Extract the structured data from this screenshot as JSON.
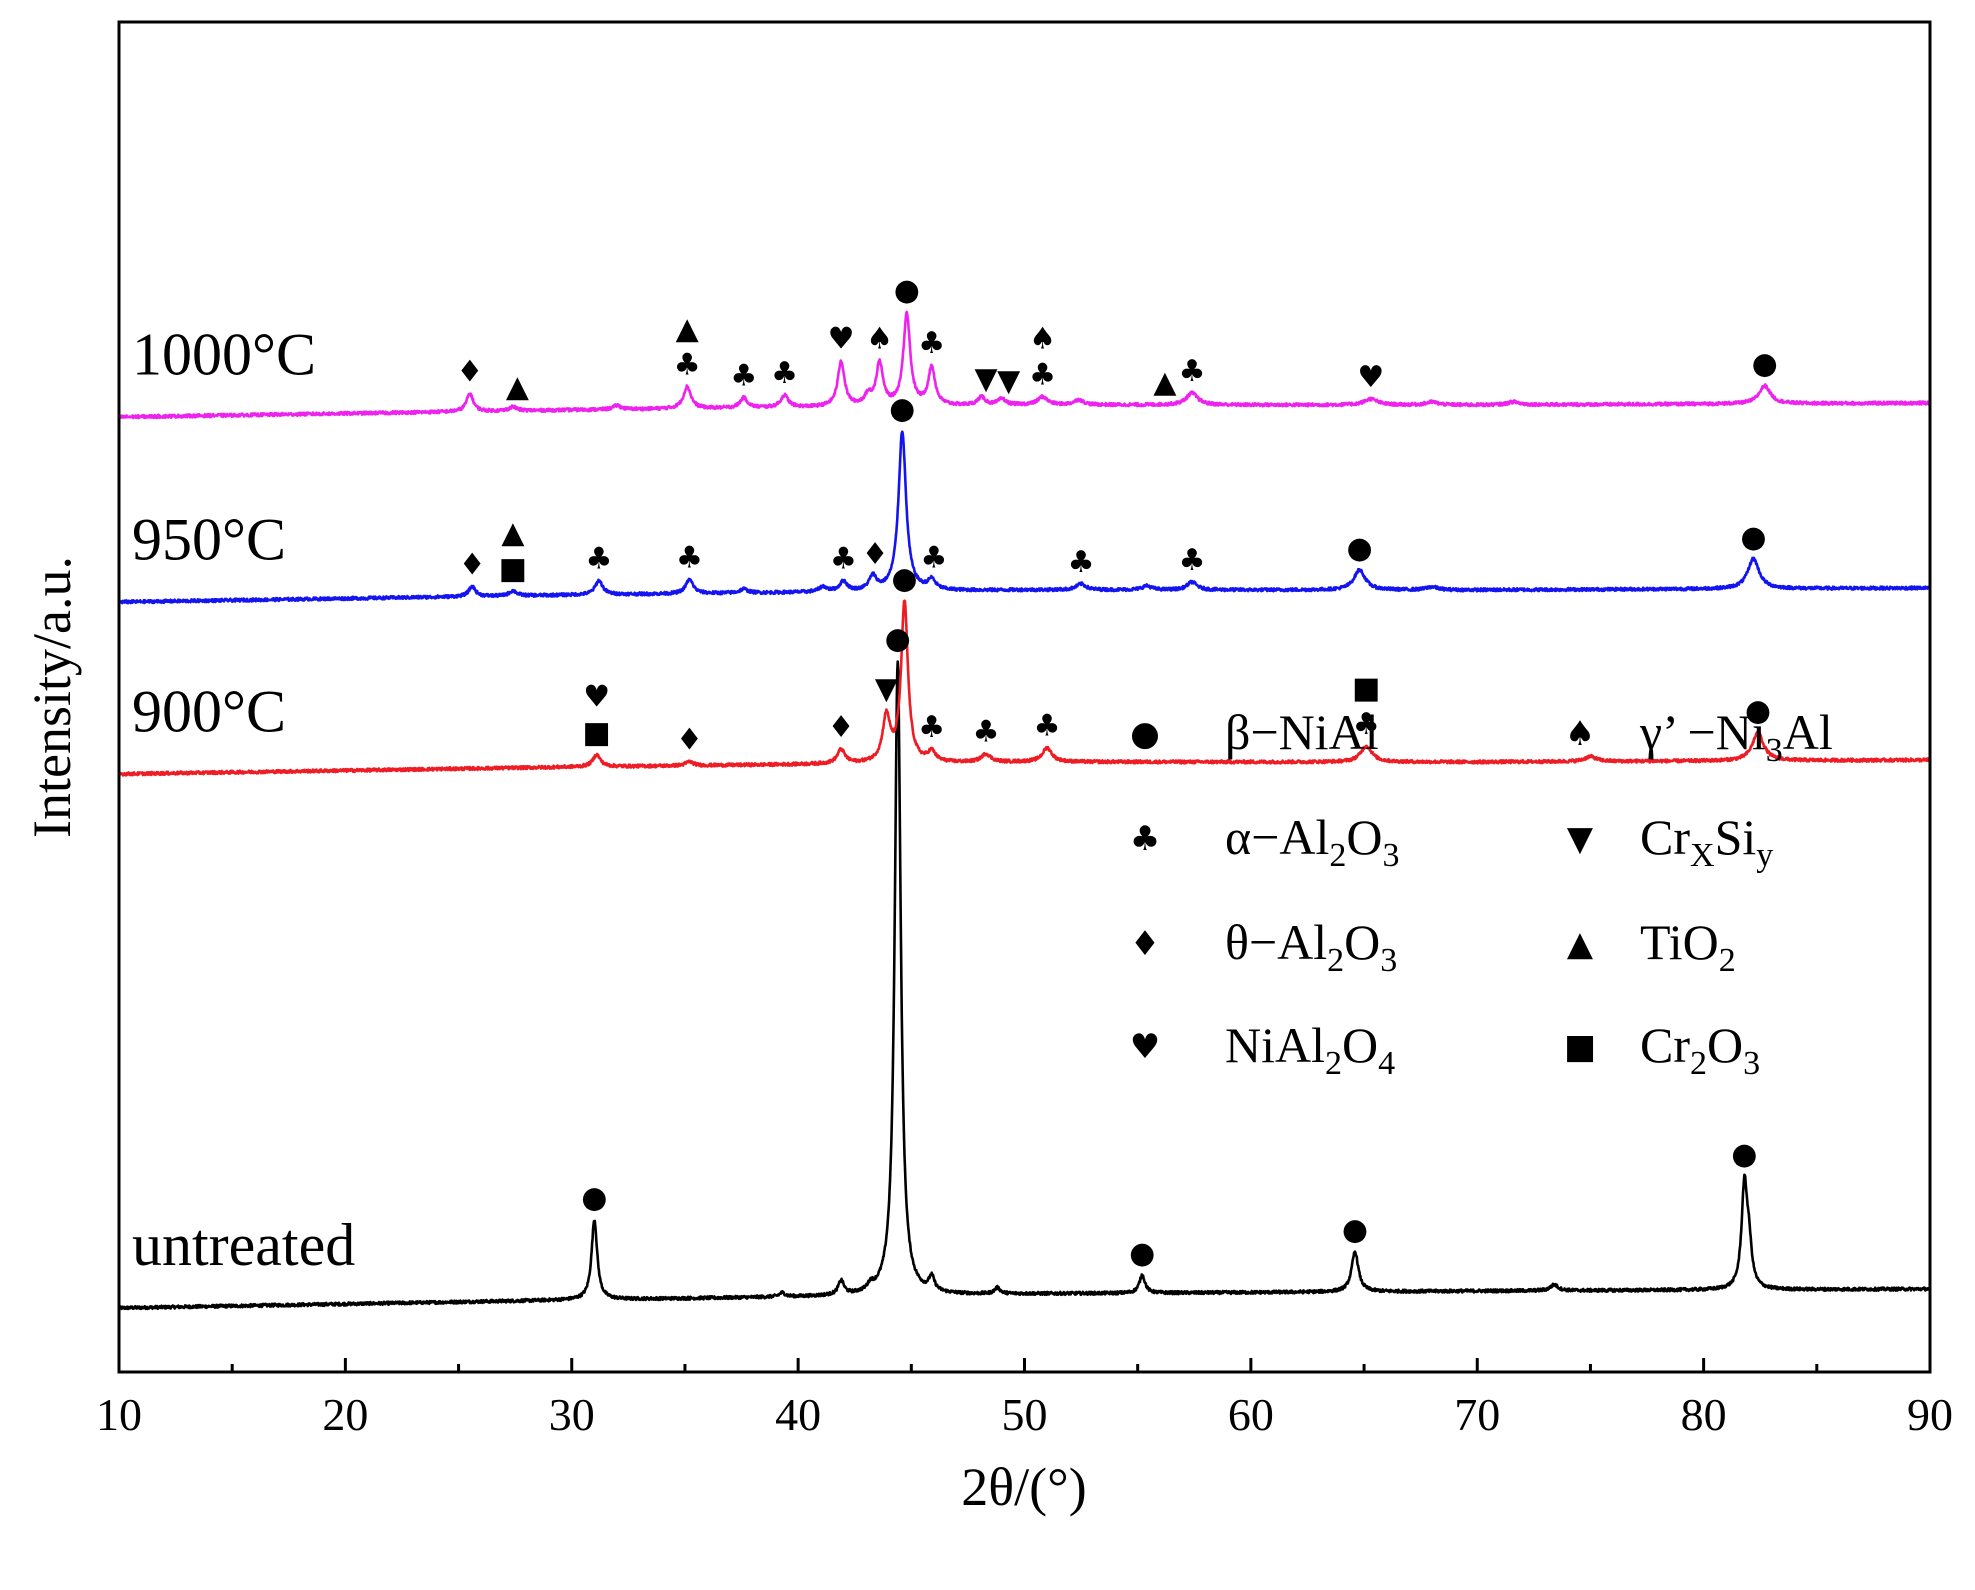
{
  "chart_data": {
    "type": "line",
    "title": "",
    "xlabel": "2θ/(°)",
    "ylabel": "Intensity/a.u.",
    "xlim": [
      10,
      90
    ],
    "x_ticks": [
      10,
      20,
      30,
      40,
      50,
      60,
      70,
      80,
      90
    ],
    "minor_tick_step": 5,
    "y_ticks": [],
    "grid": false,
    "legend_position": "center-right",
    "series": [
      {
        "name": "untreated",
        "color": "#000000",
        "offset": 0,
        "baseline": [
          [
            10,
            14
          ],
          [
            30,
            22
          ],
          [
            50,
            28
          ],
          [
            70,
            31
          ],
          [
            90,
            33
          ]
        ],
        "peaks": [
          {
            "x": 31.0,
            "h": 80,
            "w": 0.15
          },
          {
            "x": 39.3,
            "h": 4,
            "w": 0.15
          },
          {
            "x": 41.9,
            "h": 14,
            "w": 0.15
          },
          {
            "x": 43.2,
            "h": 6,
            "w": 0.15
          },
          {
            "x": 44.4,
            "h": 635,
            "w": 0.16
          },
          {
            "x": 45.9,
            "h": 14,
            "w": 0.15
          },
          {
            "x": 48.8,
            "h": 6,
            "w": 0.15
          },
          {
            "x": 55.2,
            "h": 18,
            "w": 0.15
          },
          {
            "x": 64.6,
            "h": 40,
            "w": 0.18
          },
          {
            "x": 73.4,
            "h": 6,
            "w": 0.2
          },
          {
            "x": 81.8,
            "h": 100,
            "w": 0.15
          },
          {
            "x": 82.0,
            "h": 38,
            "w": 0.15
          }
        ]
      },
      {
        "name": "900°C",
        "color": "#ee1c24",
        "offset": 548,
        "baseline": [
          [
            10,
            0
          ],
          [
            30,
            7
          ],
          [
            50,
            12
          ],
          [
            70,
            12
          ],
          [
            90,
            14
          ]
        ],
        "peaks": [
          {
            "x": 31.1,
            "h": 12,
            "w": 0.2
          },
          {
            "x": 35.2,
            "h": 4,
            "w": 0.2
          },
          {
            "x": 41.9,
            "h": 14,
            "w": 0.2
          },
          {
            "x": 43.9,
            "h": 45,
            "w": 0.2
          },
          {
            "x": 44.7,
            "h": 160,
            "w": 0.18
          },
          {
            "x": 45.9,
            "h": 10,
            "w": 0.2
          },
          {
            "x": 48.3,
            "h": 8,
            "w": 0.25
          },
          {
            "x": 51.0,
            "h": 14,
            "w": 0.25
          },
          {
            "x": 65.1,
            "h": 16,
            "w": 0.3
          },
          {
            "x": 75.0,
            "h": 5,
            "w": 0.3
          },
          {
            "x": 82.4,
            "h": 28,
            "w": 0.3
          }
        ]
      },
      {
        "name": "950°C",
        "color": "#1414f0",
        "offset": 720,
        "baseline": [
          [
            10,
            0
          ],
          [
            30,
            7
          ],
          [
            50,
            12
          ],
          [
            70,
            12
          ],
          [
            90,
            14
          ]
        ],
        "peaks": [
          {
            "x": 25.6,
            "h": 10,
            "w": 0.18
          },
          {
            "x": 27.4,
            "h": 5,
            "w": 0.2
          },
          {
            "x": 31.2,
            "h": 14,
            "w": 0.2
          },
          {
            "x": 35.2,
            "h": 14,
            "w": 0.2
          },
          {
            "x": 37.6,
            "h": 4,
            "w": 0.2
          },
          {
            "x": 41.1,
            "h": 5,
            "w": 0.2
          },
          {
            "x": 42.0,
            "h": 10,
            "w": 0.2
          },
          {
            "x": 43.3,
            "h": 14,
            "w": 0.2
          },
          {
            "x": 44.6,
            "h": 160,
            "w": 0.2
          },
          {
            "x": 45.9,
            "h": 10,
            "w": 0.2
          },
          {
            "x": 52.5,
            "h": 6,
            "w": 0.25
          },
          {
            "x": 55.4,
            "h": 4,
            "w": 0.25
          },
          {
            "x": 57.4,
            "h": 8,
            "w": 0.25
          },
          {
            "x": 64.8,
            "h": 20,
            "w": 0.3
          },
          {
            "x": 68.0,
            "h": 3,
            "w": 0.3
          },
          {
            "x": 82.2,
            "h": 30,
            "w": 0.3
          }
        ]
      },
      {
        "name": "1000°C",
        "color": "#ee22ee",
        "offset": 905,
        "baseline": [
          [
            10,
            0
          ],
          [
            30,
            7
          ],
          [
            50,
            12
          ],
          [
            70,
            12
          ],
          [
            90,
            14
          ]
        ],
        "peaks": [
          {
            "x": 25.5,
            "h": 18,
            "w": 0.18
          },
          {
            "x": 27.4,
            "h": 4,
            "w": 0.2
          },
          {
            "x": 32.0,
            "h": 4,
            "w": 0.2
          },
          {
            "x": 35.1,
            "h": 22,
            "w": 0.2
          },
          {
            "x": 37.6,
            "h": 10,
            "w": 0.2
          },
          {
            "x": 39.4,
            "h": 12,
            "w": 0.2
          },
          {
            "x": 41.9,
            "h": 45,
            "w": 0.18
          },
          {
            "x": 43.1,
            "h": 10,
            "w": 0.2
          },
          {
            "x": 43.6,
            "h": 42,
            "w": 0.18
          },
          {
            "x": 44.8,
            "h": 92,
            "w": 0.18
          },
          {
            "x": 45.9,
            "h": 38,
            "w": 0.18
          },
          {
            "x": 48.1,
            "h": 8,
            "w": 0.2
          },
          {
            "x": 49.0,
            "h": 6,
            "w": 0.2
          },
          {
            "x": 50.8,
            "h": 8,
            "w": 0.25
          },
          {
            "x": 52.4,
            "h": 5,
            "w": 0.25
          },
          {
            "x": 57.4,
            "h": 12,
            "w": 0.3
          },
          {
            "x": 65.3,
            "h": 6,
            "w": 0.35
          },
          {
            "x": 68.0,
            "h": 3,
            "w": 0.3
          },
          {
            "x": 71.6,
            "h": 3,
            "w": 0.3
          },
          {
            "x": 82.7,
            "h": 18,
            "w": 0.3
          }
        ]
      }
    ],
    "curve_labels": [
      {
        "text": "untreated",
        "series": "untreated"
      },
      {
        "text": "900°C",
        "series": "900°C"
      },
      {
        "text": "950°C",
        "series": "950°C"
      },
      {
        "text": "1000°C",
        "series": "1000°C"
      }
    ],
    "peak_markers": [
      {
        "series": "untreated",
        "x": 31.0,
        "symbol": "●"
      },
      {
        "series": "untreated",
        "x": 44.4,
        "symbol": "●"
      },
      {
        "series": "untreated",
        "x": 55.2,
        "symbol": "●"
      },
      {
        "series": "untreated",
        "x": 64.6,
        "symbol": "●"
      },
      {
        "series": "untreated",
        "x": 81.8,
        "symbol": "●"
      },
      {
        "series": "900°C",
        "x": 31.1,
        "symbol": "■"
      },
      {
        "series": "900°C",
        "x": 31.1,
        "symbol": "♥",
        "stack": 1
      },
      {
        "series": "900°C",
        "x": 35.2,
        "symbol": "♦"
      },
      {
        "series": "900°C",
        "x": 41.9,
        "symbol": "♦"
      },
      {
        "series": "900°C",
        "x": 43.9,
        "symbol": "▼"
      },
      {
        "series": "900°C",
        "x": 44.7,
        "symbol": "●"
      },
      {
        "series": "900°C",
        "x": 45.9,
        "symbol": "♣"
      },
      {
        "series": "900°C",
        "x": 48.3,
        "symbol": "♣"
      },
      {
        "series": "900°C",
        "x": 51.0,
        "symbol": "♣"
      },
      {
        "series": "900°C",
        "x": 65.1,
        "symbol": "♣"
      },
      {
        "series": "900°C",
        "x": 65.1,
        "symbol": "■",
        "stack": 1
      },
      {
        "series": "900°C",
        "x": 82.4,
        "symbol": "●"
      },
      {
        "series": "950°C",
        "x": 25.6,
        "symbol": "♦"
      },
      {
        "series": "950°C",
        "x": 27.4,
        "symbol": "■"
      },
      {
        "series": "950°C",
        "x": 27.4,
        "symbol": "▲",
        "stack": 1
      },
      {
        "series": "950°C",
        "x": 31.2,
        "symbol": "♣"
      },
      {
        "series": "950°C",
        "x": 35.2,
        "symbol": "♣"
      },
      {
        "series": "950°C",
        "x": 42.0,
        "symbol": "♣"
      },
      {
        "series": "950°C",
        "x": 43.4,
        "symbol": "♦"
      },
      {
        "series": "950°C",
        "x": 44.6,
        "symbol": "●"
      },
      {
        "series": "950°C",
        "x": 46.0,
        "symbol": "♣"
      },
      {
        "series": "950°C",
        "x": 52.5,
        "symbol": "♣"
      },
      {
        "series": "950°C",
        "x": 57.4,
        "symbol": "♣"
      },
      {
        "series": "950°C",
        "x": 64.8,
        "symbol": "●"
      },
      {
        "series": "950°C",
        "x": 82.2,
        "symbol": "●"
      },
      {
        "series": "1000°C",
        "x": 25.5,
        "symbol": "♦"
      },
      {
        "series": "1000°C",
        "x": 27.6,
        "symbol": "▲"
      },
      {
        "series": "1000°C",
        "x": 35.1,
        "symbol": "♣"
      },
      {
        "series": "1000°C",
        "x": 35.1,
        "symbol": "▲",
        "stack": 1
      },
      {
        "series": "1000°C",
        "x": 37.6,
        "symbol": "♣"
      },
      {
        "series": "1000°C",
        "x": 39.4,
        "symbol": "♣"
      },
      {
        "series": "1000°C",
        "x": 41.9,
        "symbol": "♥"
      },
      {
        "series": "1000°C",
        "x": 43.6,
        "symbol": "♠"
      },
      {
        "series": "1000°C",
        "x": 44.8,
        "symbol": "●"
      },
      {
        "series": "1000°C",
        "x": 45.9,
        "symbol": "♣"
      },
      {
        "series": "1000°C",
        "x": 48.3,
        "symbol": "▼"
      },
      {
        "series": "1000°C",
        "x": 49.3,
        "symbol": "▼"
      },
      {
        "series": "1000°C",
        "x": 50.8,
        "symbol": "♣"
      },
      {
        "series": "1000°C",
        "x": 50.8,
        "symbol": "♠",
        "stack": 1
      },
      {
        "series": "1000°C",
        "x": 56.2,
        "symbol": "▲"
      },
      {
        "series": "1000°C",
        "x": 57.4,
        "symbol": "♣"
      },
      {
        "series": "1000°C",
        "x": 65.3,
        "symbol": "♥"
      },
      {
        "series": "1000°C",
        "x": 82.7,
        "symbol": "●"
      }
    ],
    "legend": [
      {
        "symbol": "●",
        "label": "β−NiAl"
      },
      {
        "symbol": "♠",
        "label": "γ’ −Ni",
        "sub": "3",
        "tail": "Al"
      },
      {
        "symbol": "♣",
        "label": "α−Al",
        "sub": "2",
        "tail": "O",
        "sub2": "3"
      },
      {
        "symbol": "▼",
        "label": "Cr",
        "sub": "X",
        "tail": "Si",
        "sub2": "y"
      },
      {
        "symbol": "♦",
        "label": "θ−Al",
        "sub": "2",
        "tail": "O",
        "sub2": "3"
      },
      {
        "symbol": "▲",
        "label": "TiO",
        "sub": "2"
      },
      {
        "symbol": "♥",
        "label": "NiAl",
        "sub": "2",
        "tail": "O",
        "sub2": "4"
      },
      {
        "symbol": "■",
        "label": "Cr",
        "sub": "2",
        "tail": "O",
        "sub2": "3"
      }
    ]
  }
}
